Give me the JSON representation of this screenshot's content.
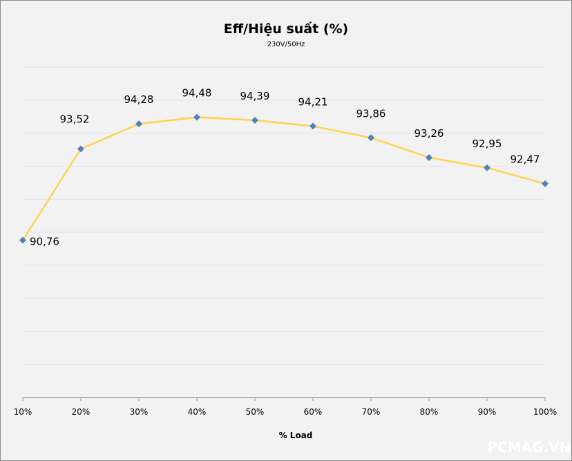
{
  "chart_data": {
    "type": "line",
    "title": "Eff/Hiệu suất (%)",
    "subtitle": "230V/50Hz",
    "xlabel": "% Load",
    "ylabel": "",
    "categories": [
      "10%",
      "20%",
      "30%",
      "40%",
      "50%",
      "60%",
      "70%",
      "80%",
      "90%",
      "100%"
    ],
    "series": [
      {
        "name": "Eff",
        "values": [
          90.76,
          93.52,
          94.28,
          94.48,
          94.39,
          94.21,
          93.86,
          93.26,
          92.95,
          92.47
        ],
        "labels": [
          "90,76",
          "93,52",
          "94,28",
          "94,48",
          "94,39",
          "94,21",
          "93,86",
          "93,26",
          "92,95",
          "92,47"
        ]
      }
    ],
    "ylim": [
      86,
      96
    ],
    "grid": true,
    "line_color": "#ffd34d",
    "marker_color": "#4f81bd"
  },
  "watermark": "PCMAG.VN"
}
